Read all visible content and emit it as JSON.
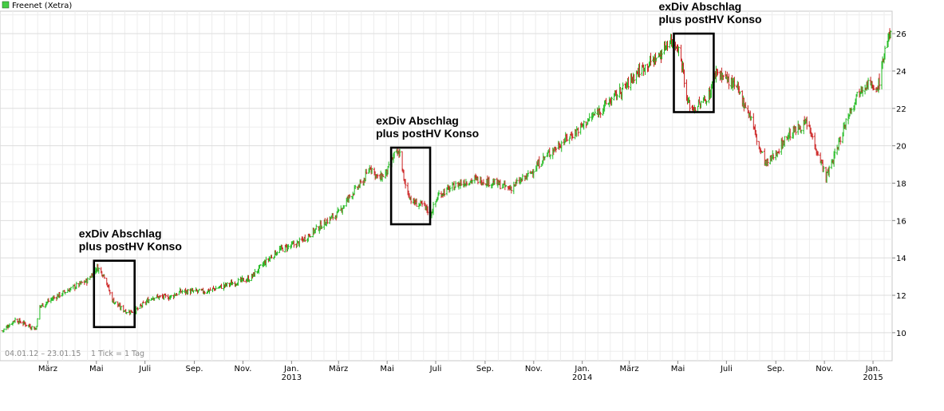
{
  "chart_data": {
    "type": "ohlc",
    "title": "Freenet (Xetra)",
    "date_range_label": "04.01.12 – 23.01.15",
    "tick_info": "1 Tick = 1 Tag",
    "colors": {
      "up": "#22bb22",
      "down": "#cc2222",
      "grid": "#dddddd",
      "legend_swatch": "#44cc44"
    },
    "ylim": [
      8.5,
      27.2
    ],
    "y_ticks": [
      {
        "value": 10,
        "label": "10"
      },
      {
        "value": 12,
        "label": "12"
      },
      {
        "value": 14,
        "label": "14"
      },
      {
        "value": 16,
        "label": "16"
      },
      {
        "value": 18,
        "label": "18"
      },
      {
        "value": 20,
        "label": "20"
      },
      {
        "value": 22,
        "label": "22"
      },
      {
        "value": 24,
        "label": "24"
      },
      {
        "value": 26,
        "label": "26"
      }
    ],
    "x_range": [
      "2012-01-04",
      "2015-01-23"
    ],
    "x_ticks": [
      {
        "date": "2012-03-01",
        "label": "März",
        "year": ""
      },
      {
        "date": "2012-05-01",
        "label": "Mai",
        "year": ""
      },
      {
        "date": "2012-07-01",
        "label": "Juli",
        "year": ""
      },
      {
        "date": "2012-09-01",
        "label": "Sep.",
        "year": ""
      },
      {
        "date": "2012-11-01",
        "label": "Nov.",
        "year": ""
      },
      {
        "date": "2013-01-01",
        "label": "Jan.",
        "year": "2013"
      },
      {
        "date": "2013-03-01",
        "label": "März",
        "year": ""
      },
      {
        "date": "2013-05-01",
        "label": "Mai",
        "year": ""
      },
      {
        "date": "2013-07-01",
        "label": "Juli",
        "year": ""
      },
      {
        "date": "2013-09-01",
        "label": "Sep.",
        "year": ""
      },
      {
        "date": "2013-11-01",
        "label": "Nov.",
        "year": ""
      },
      {
        "date": "2014-01-01",
        "label": "Jan.",
        "year": "2014"
      },
      {
        "date": "2014-03-01",
        "label": "März",
        "year": ""
      },
      {
        "date": "2014-05-01",
        "label": "Mai",
        "year": ""
      },
      {
        "date": "2014-07-01",
        "label": "Juli",
        "year": ""
      },
      {
        "date": "2014-09-01",
        "label": "Sep.",
        "year": ""
      },
      {
        "date": "2014-11-01",
        "label": "Nov.",
        "year": ""
      },
      {
        "date": "2015-01-01",
        "label": "Jan.",
        "year": "2015"
      }
    ],
    "close_path": [
      [
        "2012-01-04",
        10.1
      ],
      [
        "2012-01-20",
        10.7
      ],
      [
        "2012-02-05",
        10.4
      ],
      [
        "2012-02-15",
        10.2
      ],
      [
        "2012-02-20",
        11.4
      ],
      [
        "2012-03-10",
        11.9
      ],
      [
        "2012-04-01",
        12.4
      ],
      [
        "2012-04-20",
        12.8
      ],
      [
        "2012-05-02",
        13.5
      ],
      [
        "2012-05-12",
        13.0
      ],
      [
        "2012-05-20",
        11.8
      ],
      [
        "2012-06-01",
        11.3
      ],
      [
        "2012-06-10",
        11.1
      ],
      [
        "2012-06-20",
        11.2
      ],
      [
        "2012-07-10",
        11.9
      ],
      [
        "2012-08-01",
        11.9
      ],
      [
        "2012-08-15",
        12.2
      ],
      [
        "2012-09-15",
        12.2
      ],
      [
        "2012-10-15",
        12.6
      ],
      [
        "2012-11-10",
        12.9
      ],
      [
        "2012-11-25",
        13.6
      ],
      [
        "2012-12-15",
        14.4
      ],
      [
        "2013-01-10",
        14.8
      ],
      [
        "2013-01-25",
        15.3
      ],
      [
        "2013-02-15",
        16.0
      ],
      [
        "2013-03-01",
        16.4
      ],
      [
        "2013-03-15",
        17.3
      ],
      [
        "2013-04-01",
        18.1
      ],
      [
        "2013-04-10",
        18.9
      ],
      [
        "2013-04-20",
        18.2
      ],
      [
        "2013-05-01",
        18.6
      ],
      [
        "2013-05-10",
        19.5
      ],
      [
        "2013-05-18",
        19.6
      ],
      [
        "2013-05-22",
        18.1
      ],
      [
        "2013-06-01",
        17.0
      ],
      [
        "2013-06-15",
        16.8
      ],
      [
        "2013-06-25",
        16.4
      ],
      [
        "2013-07-05",
        17.4
      ],
      [
        "2013-08-01",
        18.0
      ],
      [
        "2013-08-20",
        18.2
      ],
      [
        "2013-09-15",
        18.0
      ],
      [
        "2013-10-01",
        17.7
      ],
      [
        "2013-10-25",
        18.4
      ],
      [
        "2013-11-15",
        19.4
      ],
      [
        "2013-12-10",
        20.3
      ],
      [
        "2013-12-25",
        20.8
      ],
      [
        "2014-01-20",
        21.8
      ],
      [
        "2014-02-10",
        22.6
      ],
      [
        "2014-02-25",
        23.2
      ],
      [
        "2014-03-10",
        23.9
      ],
      [
        "2014-03-25",
        24.4
      ],
      [
        "2014-04-10",
        24.9
      ],
      [
        "2014-04-20",
        25.7
      ],
      [
        "2014-05-01",
        25.3
      ],
      [
        "2014-05-08",
        24.0
      ],
      [
        "2014-05-12",
        22.4
      ],
      [
        "2014-05-20",
        22.0
      ],
      [
        "2014-06-01",
        22.3
      ],
      [
        "2014-06-10",
        22.8
      ],
      [
        "2014-06-18",
        24.0
      ],
      [
        "2014-07-01",
        23.6
      ],
      [
        "2014-07-15",
        23.0
      ],
      [
        "2014-08-01",
        21.5
      ],
      [
        "2014-08-10",
        20.0
      ],
      [
        "2014-08-20",
        19.0
      ],
      [
        "2014-09-01",
        19.6
      ],
      [
        "2014-09-15",
        20.5
      ],
      [
        "2014-10-01",
        21.0
      ],
      [
        "2014-10-10",
        21.2
      ],
      [
        "2014-10-25",
        19.5
      ],
      [
        "2014-11-03",
        18.3
      ],
      [
        "2014-11-15",
        19.6
      ],
      [
        "2014-12-01",
        21.7
      ],
      [
        "2014-12-15",
        23.0
      ],
      [
        "2014-12-28",
        23.5
      ],
      [
        "2015-01-03",
        22.7
      ],
      [
        "2015-01-10",
        23.6
      ],
      [
        "2015-01-17",
        25.5
      ],
      [
        "2015-01-23",
        25.9
      ]
    ],
    "annotations": [
      {
        "line1": "exDiv Abschlag",
        "line2": "plus postHV Konso",
        "box_dates": [
          "2012-04-28",
          "2012-06-18"
        ],
        "box_values": [
          10.3,
          13.85
        ]
      },
      {
        "line1": "exDiv Abschlag",
        "line2": "plus postHV Konso",
        "box_dates": [
          "2013-05-06",
          "2013-06-24"
        ],
        "box_values": [
          15.8,
          19.9
        ]
      },
      {
        "line1": "exDiv Abschlag",
        "line2": "plus postHV Konso",
        "box_dates": [
          "2014-04-26",
          "2014-06-15"
        ],
        "box_values": [
          21.8,
          26.0
        ]
      }
    ]
  }
}
